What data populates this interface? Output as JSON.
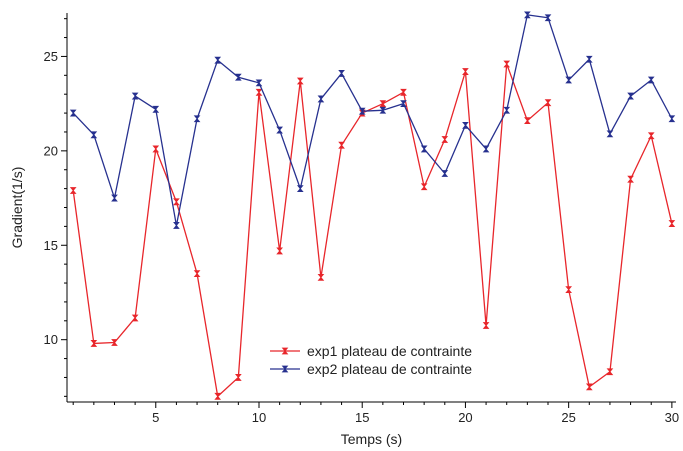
{
  "chart_data": {
    "type": "line",
    "xlabel": "Temps (s)",
    "ylabel": "Gradient(1/s)",
    "xlim": [
      0.7,
      30.2
    ],
    "ylim": [
      6.7,
      27.3
    ],
    "xticks": [
      5,
      10,
      15,
      20,
      25,
      30
    ],
    "yticks": [
      10,
      15,
      20,
      25
    ],
    "grid": false,
    "legend_position": "bottom-center",
    "x": [
      1,
      2,
      3,
      4,
      5,
      6,
      7,
      8,
      9,
      10,
      11,
      12,
      13,
      14,
      15,
      16,
      17,
      18,
      19,
      20,
      21,
      22,
      23,
      24,
      25,
      26,
      27,
      28,
      29,
      30
    ],
    "series": [
      {
        "name": "exp1 plateau de contrainte",
        "color": "#e8262b",
        "values": [
          17.9,
          9.8,
          9.85,
          11.15,
          20.1,
          17.3,
          13.5,
          7.0,
          8.0,
          23.1,
          14.7,
          23.7,
          13.3,
          20.3,
          22.0,
          22.5,
          23.1,
          18.1,
          20.6,
          24.2,
          10.75,
          24.6,
          21.6,
          22.55,
          12.65,
          7.5,
          8.3,
          18.5,
          20.8,
          16.15
        ]
      },
      {
        "name": "exp2 plateau de contrainte",
        "color": "#27318f",
        "values": [
          22.0,
          20.85,
          17.5,
          22.9,
          22.2,
          16.05,
          21.7,
          24.8,
          23.9,
          23.6,
          21.1,
          18.0,
          22.75,
          24.1,
          22.1,
          22.15,
          22.5,
          20.1,
          18.8,
          21.35,
          20.1,
          22.15,
          27.2,
          27.05,
          23.75,
          24.85,
          20.9,
          22.9,
          23.75,
          21.7
        ]
      }
    ]
  }
}
